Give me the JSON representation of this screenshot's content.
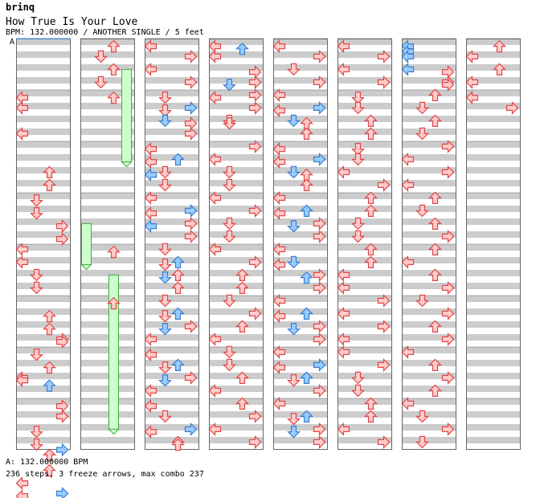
{
  "header": {
    "artist": "brinq",
    "title": "How True Is Your Love",
    "info": "BPM: 132.000000 / ANOTHER SINGLE / 5 feet"
  },
  "bpm_marker": "A",
  "footer": {
    "bpm_line": "A: 132.000000 BPM",
    "stats_line": "236 steps, 3 freeze arrows, max combo 237"
  },
  "colors": {
    "band": "#cccccc",
    "panel_border": "#666666",
    "arrow_red_fill": "#ffcccc",
    "arrow_red_stroke": "#e04848",
    "arrow_blue_fill": "#99ccff",
    "arrow_blue_stroke": "#3a7fd0",
    "freeze_fill": "#ccffcc",
    "freeze_stroke": "#44aa44",
    "bpm_line": "#3c9fff"
  },
  "chart_data": {
    "type": "step-chart",
    "lanes": [
      "left",
      "down",
      "up",
      "right"
    ],
    "columns": 8,
    "measures_per_column": 8,
    "rows_per_measure": 8,
    "notes": [
      [
        [
          0,
          7.4,
          "L",
          "r"
        ],
        [
          1,
          0.6,
          "L",
          "r"
        ],
        [
          1,
          1.4,
          "L",
          "r"
        ],
        [
          2,
          2.4,
          "U",
          "r"
        ],
        [
          2,
          3.4,
          "U",
          "r"
        ],
        [
          3,
          0.6,
          "D",
          "r"
        ],
        [
          3,
          1.6,
          "D",
          "r"
        ],
        [
          3,
          2.6,
          "R",
          "r"
        ],
        [
          3,
          3.6,
          "R",
          "r"
        ],
        [
          4,
          0.4,
          "L",
          "r"
        ],
        [
          4,
          1.4,
          "L",
          "r"
        ],
        [
          4,
          2.4,
          "D",
          "r"
        ],
        [
          4,
          3.4,
          "D",
          "r"
        ],
        [
          5,
          1.6,
          "U",
          "r"
        ],
        [
          5,
          2.6,
          "U",
          "r"
        ],
        [
          5,
          3.4,
          "R",
          "r"
        ],
        [
          5,
          3.6,
          "R",
          "r"
        ],
        [
          6,
          0.6,
          "D",
          "r"
        ],
        [
          6,
          1.6,
          "U",
          "r"
        ],
        [
          6,
          2.4,
          "L",
          "r"
        ],
        [
          6,
          2.6,
          "L",
          "r"
        ],
        [
          6,
          3.0,
          "U",
          "b"
        ],
        [
          7,
          0.6,
          "R",
          "r"
        ],
        [
          7,
          1.4,
          "R",
          "r"
        ],
        [
          7,
          2.6,
          "D",
          "r"
        ],
        [
          7,
          3.6,
          "D",
          "r"
        ],
        [
          7,
          4.0,
          "R",
          "b"
        ],
        [
          8,
          0.4,
          "U",
          "r"
        ],
        [
          8,
          1.6,
          "U",
          "r"
        ],
        [
          8,
          2.6,
          "L",
          "r"
        ],
        [
          8,
          3.4,
          "R",
          "b"
        ],
        [
          8,
          3.6,
          "L",
          "r"
        ]
      ],
      [
        [
          0,
          0.6,
          "U",
          "r"
        ],
        [
          0,
          1.4,
          "D",
          "r"
        ],
        [
          0,
          2.4,
          "U",
          "r"
        ],
        [
          0,
          3.4,
          "D",
          "r"
        ],
        [
          1,
          0.6,
          "U",
          "r"
        ],
        [
          4,
          0.6,
          "U",
          "r"
        ],
        [
          5,
          0.6,
          "U",
          "r"
        ]
      ],
      [
        [
          0,
          0.6,
          "L",
          "r"
        ],
        [
          0,
          1.4,
          "R",
          "r"
        ],
        [
          0,
          2.4,
          "L",
          "r"
        ],
        [
          0,
          3.4,
          "R",
          "r"
        ],
        [
          1,
          0.6,
          "D",
          "r"
        ],
        [
          1,
          1.4,
          "R",
          "b"
        ],
        [
          1,
          1.6,
          "D",
          "r"
        ],
        [
          1,
          2.4,
          "D",
          "b"
        ],
        [
          1,
          2.6,
          "R",
          "r"
        ],
        [
          1,
          3.4,
          "R",
          "r"
        ],
        [
          2,
          0.6,
          "L",
          "r"
        ],
        [
          2,
          1.4,
          "U",
          "b"
        ],
        [
          2,
          1.6,
          "L",
          "r"
        ],
        [
          2,
          2.4,
          "D",
          "r"
        ],
        [
          2,
          2.6,
          "L",
          "b"
        ],
        [
          2,
          3.4,
          "D",
          "r"
        ],
        [
          3,
          0.4,
          "L",
          "r"
        ],
        [
          3,
          1.4,
          "R",
          "b"
        ],
        [
          3,
          1.6,
          "L",
          "r"
        ],
        [
          3,
          2.4,
          "R",
          "r"
        ],
        [
          3,
          2.6,
          "L",
          "b"
        ],
        [
          3,
          3.4,
          "R",
          "r"
        ],
        [
          4,
          0.4,
          "D",
          "r"
        ],
        [
          4,
          1.4,
          "U",
          "b"
        ],
        [
          4,
          1.6,
          "D",
          "r"
        ],
        [
          4,
          2.4,
          "U",
          "r"
        ],
        [
          4,
          2.6,
          "D",
          "b"
        ],
        [
          4,
          3.4,
          "U",
          "r"
        ],
        [
          5,
          0.4,
          "D",
          "r"
        ],
        [
          5,
          1.4,
          "U",
          "b"
        ],
        [
          5,
          1.6,
          "D",
          "r"
        ],
        [
          5,
          2.4,
          "R",
          "r"
        ],
        [
          5,
          2.6,
          "D",
          "b"
        ],
        [
          5,
          3.4,
          "L",
          "r"
        ],
        [
          6,
          0.6,
          "L",
          "r"
        ],
        [
          6,
          1.4,
          "U",
          "b"
        ],
        [
          6,
          1.6,
          "D",
          "r"
        ],
        [
          6,
          2.4,
          "R",
          "r"
        ],
        [
          6,
          2.6,
          "D",
          "b"
        ],
        [
          6,
          3.4,
          "L",
          "r"
        ],
        [
          7,
          0.6,
          "L",
          "r"
        ],
        [
          7,
          1.4,
          "D",
          "r"
        ],
        [
          7,
          2.4,
          "R",
          "b"
        ],
        [
          7,
          2.6,
          "L",
          "r"
        ],
        [
          7,
          3.4,
          "U",
          "r"
        ],
        [
          7,
          3.6,
          "U",
          "r"
        ]
      ],
      [
        [
          0,
          0.6,
          "L",
          "r"
        ],
        [
          0,
          0.8,
          "U",
          "b"
        ],
        [
          0,
          1.4,
          "L",
          "r"
        ],
        [
          0,
          2.6,
          "R",
          "r"
        ],
        [
          0,
          3.4,
          "R",
          "r"
        ],
        [
          0,
          3.6,
          "D",
          "b"
        ],
        [
          1,
          0.4,
          "R",
          "r"
        ],
        [
          1,
          0.6,
          "L",
          "r"
        ],
        [
          1,
          1.4,
          "R",
          "r"
        ],
        [
          1,
          2.4,
          "D",
          "r"
        ],
        [
          1,
          2.6,
          "D",
          "r"
        ],
        [
          2,
          0.4,
          "R",
          "r"
        ],
        [
          2,
          1.4,
          "L",
          "r"
        ],
        [
          2,
          2.4,
          "D",
          "r"
        ],
        [
          2,
          3.4,
          "D",
          "r"
        ],
        [
          3,
          0.4,
          "L",
          "r"
        ],
        [
          3,
          1.4,
          "R",
          "r"
        ],
        [
          3,
          2.4,
          "D",
          "r"
        ],
        [
          3,
          3.4,
          "D",
          "r"
        ],
        [
          4,
          0.4,
          "L",
          "r"
        ],
        [
          4,
          1.4,
          "R",
          "r"
        ],
        [
          4,
          2.4,
          "U",
          "r"
        ],
        [
          4,
          3.4,
          "U",
          "r"
        ],
        [
          5,
          0.4,
          "D",
          "r"
        ],
        [
          5,
          1.4,
          "R",
          "r"
        ],
        [
          5,
          2.4,
          "U",
          "r"
        ],
        [
          5,
          3.4,
          "L",
          "r"
        ],
        [
          6,
          0.4,
          "D",
          "r"
        ],
        [
          6,
          1.4,
          "D",
          "r"
        ],
        [
          6,
          2.4,
          "U",
          "r"
        ],
        [
          6,
          3.4,
          "L",
          "r"
        ],
        [
          7,
          0.4,
          "U",
          "r"
        ],
        [
          7,
          1.4,
          "R",
          "r"
        ],
        [
          7,
          2.4,
          "L",
          "r"
        ],
        [
          7,
          3.4,
          "R",
          "r"
        ]
      ],
      [
        [
          0,
          0.6,
          "L",
          "r"
        ],
        [
          0,
          1.4,
          "R",
          "r"
        ],
        [
          0,
          2.4,
          "D",
          "r"
        ],
        [
          0,
          3.4,
          "R",
          "r"
        ],
        [
          1,
          0.4,
          "L",
          "r"
        ],
        [
          1,
          1.4,
          "R",
          "b"
        ],
        [
          1,
          1.6,
          "L",
          "r"
        ],
        [
          1,
          2.4,
          "D",
          "b"
        ],
        [
          1,
          2.6,
          "U",
          "r"
        ],
        [
          1,
          3.4,
          "U",
          "r"
        ],
        [
          2,
          0.6,
          "L",
          "r"
        ],
        [
          2,
          1.4,
          "R",
          "b"
        ],
        [
          2,
          1.6,
          "L",
          "r"
        ],
        [
          2,
          2.4,
          "D",
          "b"
        ],
        [
          2,
          2.6,
          "U",
          "r"
        ],
        [
          2,
          3.4,
          "U",
          "r"
        ],
        [
          3,
          0.4,
          "L",
          "r"
        ],
        [
          3,
          1.4,
          "U",
          "b"
        ],
        [
          3,
          1.6,
          "L",
          "r"
        ],
        [
          3,
          2.4,
          "R",
          "r"
        ],
        [
          3,
          2.6,
          "D",
          "b"
        ],
        [
          3,
          3.4,
          "R",
          "r"
        ],
        [
          4,
          0.4,
          "L",
          "r"
        ],
        [
          4,
          1.4,
          "D",
          "b"
        ],
        [
          4,
          1.6,
          "L",
          "r"
        ],
        [
          4,
          2.4,
          "R",
          "r"
        ],
        [
          4,
          2.6,
          "U",
          "b"
        ],
        [
          4,
          3.4,
          "R",
          "r"
        ],
        [
          5,
          0.4,
          "L",
          "r"
        ],
        [
          5,
          1.4,
          "U",
          "b"
        ],
        [
          5,
          1.6,
          "L",
          "r"
        ],
        [
          5,
          2.4,
          "R",
          "r"
        ],
        [
          5,
          2.6,
          "D",
          "b"
        ],
        [
          5,
          3.4,
          "R",
          "r"
        ],
        [
          6,
          0.4,
          "L",
          "r"
        ],
        [
          6,
          1.4,
          "R",
          "b"
        ],
        [
          6,
          1.6,
          "L",
          "r"
        ],
        [
          6,
          2.4,
          "U",
          "b"
        ],
        [
          6,
          2.6,
          "D",
          "r"
        ],
        [
          6,
          3.4,
          "R",
          "r"
        ],
        [
          7,
          0.4,
          "L",
          "r"
        ],
        [
          7,
          1.4,
          "U",
          "b"
        ],
        [
          7,
          1.6,
          "D",
          "r"
        ],
        [
          7,
          2.4,
          "R",
          "r"
        ],
        [
          7,
          2.6,
          "D",
          "b"
        ],
        [
          7,
          3.4,
          "R",
          "r"
        ]
      ],
      [
        [
          0,
          0.6,
          "L",
          "r"
        ],
        [
          0,
          1.4,
          "R",
          "r"
        ],
        [
          0,
          2.4,
          "L",
          "r"
        ],
        [
          0,
          3.4,
          "R",
          "r"
        ],
        [
          1,
          0.6,
          "D",
          "r"
        ],
        [
          1,
          1.4,
          "D",
          "r"
        ],
        [
          1,
          2.4,
          "U",
          "r"
        ],
        [
          1,
          3.4,
          "U",
          "r"
        ],
        [
          2,
          0.6,
          "D",
          "r"
        ],
        [
          2,
          1.4,
          "D",
          "r"
        ],
        [
          2,
          2.4,
          "L",
          "r"
        ],
        [
          2,
          3.4,
          "R",
          "r"
        ],
        [
          3,
          0.4,
          "U",
          "r"
        ],
        [
          3,
          1.4,
          "U",
          "r"
        ],
        [
          3,
          2.4,
          "D",
          "r"
        ],
        [
          3,
          3.4,
          "D",
          "r"
        ],
        [
          4,
          0.4,
          "U",
          "r"
        ],
        [
          4,
          1.4,
          "U",
          "r"
        ],
        [
          4,
          2.4,
          "L",
          "r"
        ],
        [
          4,
          3.4,
          "L",
          "r"
        ],
        [
          5,
          0.4,
          "R",
          "r"
        ],
        [
          5,
          1.4,
          "L",
          "r"
        ],
        [
          5,
          2.4,
          "R",
          "r"
        ],
        [
          5,
          3.4,
          "L",
          "r"
        ],
        [
          6,
          0.4,
          "L",
          "r"
        ],
        [
          6,
          1.4,
          "R",
          "r"
        ],
        [
          6,
          2.4,
          "D",
          "r"
        ],
        [
          6,
          3.4,
          "D",
          "r"
        ],
        [
          7,
          0.4,
          "U",
          "r"
        ],
        [
          7,
          1.4,
          "U",
          "r"
        ],
        [
          7,
          2.4,
          "L",
          "r"
        ],
        [
          7,
          3.4,
          "R",
          "r"
        ]
      ],
      [
        [
          0,
          0.6,
          "L",
          "b"
        ],
        [
          0,
          1.0,
          "L",
          "b"
        ],
        [
          0,
          1.4,
          "L",
          "b"
        ],
        [
          0,
          2.4,
          "L",
          "b"
        ],
        [
          0,
          2.6,
          "R",
          "r"
        ],
        [
          0,
          3.4,
          "R",
          "r"
        ],
        [
          0,
          3.6,
          "R",
          "r"
        ],
        [
          1,
          0.4,
          "U",
          "r"
        ],
        [
          1,
          1.4,
          "D",
          "r"
        ],
        [
          1,
          2.4,
          "U",
          "r"
        ],
        [
          1,
          3.4,
          "D",
          "r"
        ],
        [
          2,
          0.4,
          "R",
          "r"
        ],
        [
          2,
          1.4,
          "L",
          "r"
        ],
        [
          2,
          2.4,
          "R",
          "r"
        ],
        [
          2,
          3.4,
          "L",
          "r"
        ],
        [
          3,
          0.4,
          "U",
          "r"
        ],
        [
          3,
          1.4,
          "D",
          "r"
        ],
        [
          3,
          2.4,
          "U",
          "r"
        ],
        [
          3,
          3.4,
          "R",
          "r"
        ],
        [
          4,
          0.4,
          "U",
          "r"
        ],
        [
          4,
          1.4,
          "L",
          "r"
        ],
        [
          4,
          2.4,
          "U",
          "r"
        ],
        [
          4,
          3.4,
          "R",
          "r"
        ],
        [
          5,
          0.4,
          "D",
          "r"
        ],
        [
          5,
          1.4,
          "R",
          "r"
        ],
        [
          5,
          2.4,
          "U",
          "r"
        ],
        [
          5,
          3.4,
          "R",
          "r"
        ],
        [
          6,
          0.4,
          "L",
          "r"
        ],
        [
          6,
          1.4,
          "U",
          "r"
        ],
        [
          6,
          2.4,
          "R",
          "r"
        ],
        [
          6,
          3.4,
          "U",
          "r"
        ],
        [
          7,
          0.4,
          "L",
          "r"
        ],
        [
          7,
          1.4,
          "D",
          "r"
        ],
        [
          7,
          2.4,
          "R",
          "r"
        ],
        [
          7,
          3.4,
          "D",
          "r"
        ]
      ],
      [
        [
          0,
          0.6,
          "U",
          "r"
        ],
        [
          0,
          1.4,
          "L",
          "r"
        ],
        [
          0,
          2.4,
          "U",
          "r"
        ],
        [
          0,
          3.4,
          "L",
          "r"
        ],
        [
          1,
          0.6,
          "L",
          "r"
        ],
        [
          1,
          1.4,
          "R",
          "r"
        ]
      ]
    ],
    "freezes": [
      [
        1,
        3,
        0.6,
        2.4
      ],
      [
        1,
        0,
        3.6,
        4.4
      ],
      [
        1,
        2,
        4.6,
        7.6
      ]
    ]
  }
}
